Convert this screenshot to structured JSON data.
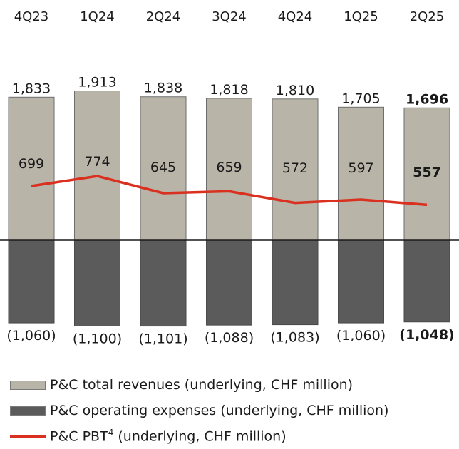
{
  "chart_data": {
    "type": "bar",
    "categories": [
      "4Q23",
      "1Q24",
      "2Q24",
      "3Q24",
      "4Q24",
      "1Q25",
      "2Q25"
    ],
    "series": [
      {
        "name": "P&C total revenues (underlying, CHF million)",
        "values": [
          1833,
          1913,
          1838,
          1818,
          1810,
          1705,
          1696
        ],
        "labels": [
          "1,833",
          "1,913",
          "1,838",
          "1,818",
          "1,810",
          "1,705",
          "1,696"
        ],
        "color": "#b8b4a8"
      },
      {
        "name": "P&C operating expenses (underlying, CHF million)",
        "values": [
          -1060,
          -1100,
          -1101,
          -1088,
          -1083,
          -1060,
          -1048
        ],
        "labels": [
          "(1,060)",
          "(1,100)",
          "(1,101)",
          "(1,088)",
          "(1,083)",
          "(1,060)",
          "(1,048)"
        ],
        "color": "#5a5b5a"
      },
      {
        "name": "P&C PBT⁴ (underlying, CHF million)",
        "type": "line",
        "values": [
          699,
          774,
          645,
          659,
          572,
          597,
          557
        ],
        "labels": [
          "699",
          "774",
          "645",
          "659",
          "572",
          "597",
          "557"
        ],
        "color": "#d9301f"
      }
    ],
    "highlight_last": true,
    "legend": "bottom",
    "grid": false
  },
  "legend": {
    "revenues": "P&C total revenues (underlying, CHF million)",
    "expenses": "P&C operating expenses (underlying, CHF million)",
    "pbt_prefix": "P&C PBT",
    "pbt_sup": "4",
    "pbt_suffix": " (underlying, CHF million)"
  },
  "colors": {
    "revenues": "#b8b4a8",
    "expenses": "#5a5b5a",
    "pbt": "#d9301f",
    "axis": "#1a1a1a"
  }
}
